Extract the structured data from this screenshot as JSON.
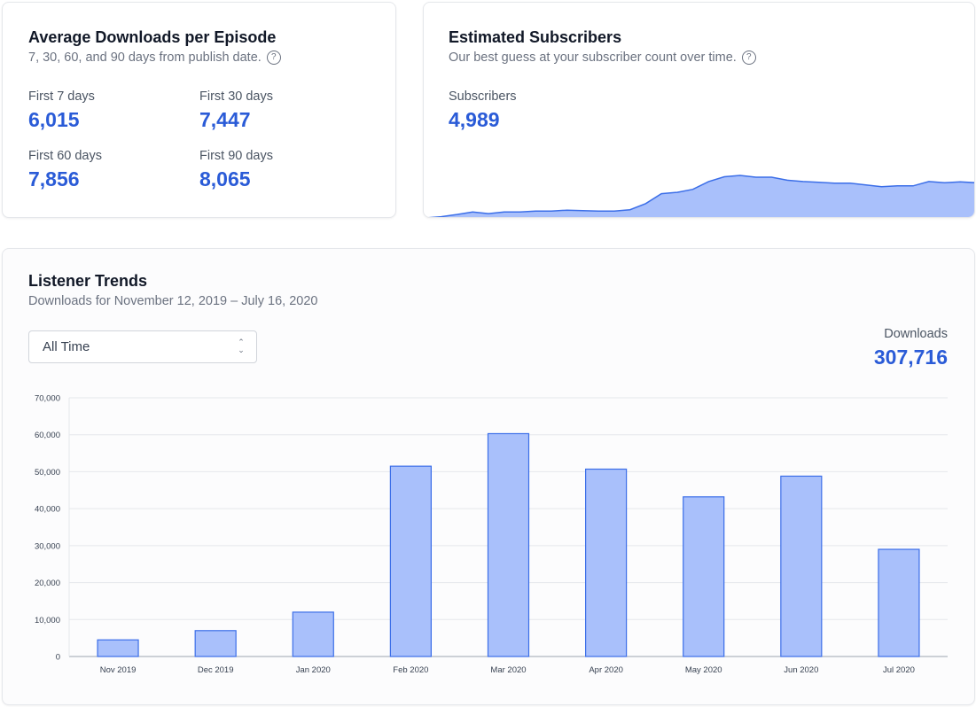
{
  "avg_downloads": {
    "title": "Average Downloads per Episode",
    "subtitle": "7, 30, 60, and 90 days from publish date.",
    "help_icon": "question-circle-icon",
    "stats": [
      {
        "label": "First 7 days",
        "value": "6,015"
      },
      {
        "label": "First 30 days",
        "value": "7,447"
      },
      {
        "label": "First 60 days",
        "value": "7,856"
      },
      {
        "label": "First 90 days",
        "value": "8,065"
      }
    ]
  },
  "subscribers": {
    "title": "Estimated Subscribers",
    "subtitle": "Our best guess at your subscriber count over time.",
    "help_icon": "question-circle-icon",
    "label": "Subscribers",
    "value": "4,989",
    "sparkline": [
      0.02,
      0.05,
      0.1,
      0.16,
      0.12,
      0.16,
      0.16,
      0.18,
      0.18,
      0.2,
      0.19,
      0.18,
      0.18,
      0.21,
      0.35,
      0.58,
      0.61,
      0.68,
      0.86,
      0.97,
      1.0,
      0.96,
      0.96,
      0.89,
      0.86,
      0.84,
      0.82,
      0.82,
      0.78,
      0.74,
      0.76,
      0.76,
      0.86,
      0.83,
      0.85,
      0.83
    ],
    "fill_color": "#a9c0fb",
    "line_color": "#3b6ee8"
  },
  "trends": {
    "title": "Listener Trends",
    "subtitle": "Downloads for November 12, 2019 – July 16, 2020",
    "range_select": "All Time",
    "total_label": "Downloads",
    "total_value": "307,716"
  },
  "chart_data": {
    "type": "bar",
    "categories": [
      "Nov 2019",
      "Dec 2019",
      "Jan 2020",
      "Feb 2020",
      "Mar 2020",
      "Apr 2020",
      "May 2020",
      "Jun 2020",
      "Jul 2020"
    ],
    "values": [
      4500,
      7000,
      12000,
      51500,
      60300,
      50700,
      43200,
      48800,
      29000
    ],
    "yticks": [
      "0",
      "10,000",
      "20,000",
      "30,000",
      "40,000",
      "50,000",
      "60,000",
      "70,000"
    ],
    "ylim": [
      0,
      70000
    ],
    "grid": true,
    "bar_fill": "#a9c0fb",
    "bar_stroke": "#3b6ee8"
  }
}
